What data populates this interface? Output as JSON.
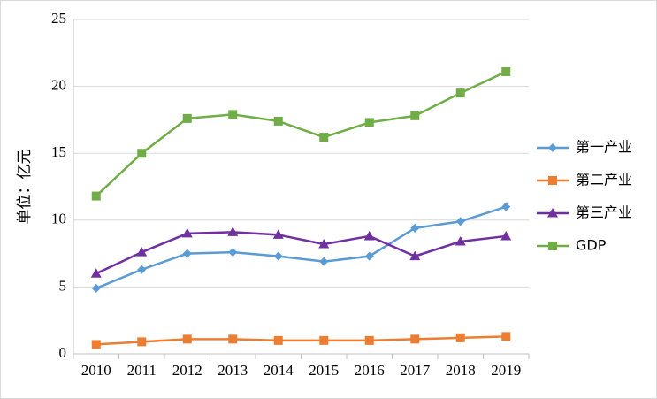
{
  "chart_data": {
    "type": "line",
    "title": "",
    "xlabel": "",
    "ylabel": "单位：亿元",
    "ylim": [
      0,
      25
    ],
    "yticks": [
      0,
      5,
      10,
      15,
      20,
      25
    ],
    "grid": "horizontal",
    "legend_position": "right",
    "categories": [
      "2010",
      "2011",
      "2012",
      "2013",
      "2014",
      "2015",
      "2016",
      "2017",
      "2018",
      "2019"
    ],
    "series": [
      {
        "name": "第一产业",
        "color": "#5b9bd5",
        "marker": "diamond",
        "values": [
          4.9,
          6.3,
          7.5,
          7.6,
          7.3,
          6.9,
          7.3,
          9.4,
          9.9,
          11.0
        ]
      },
      {
        "name": "第二产业",
        "color": "#ed7d31",
        "marker": "square",
        "values": [
          0.7,
          0.9,
          1.1,
          1.1,
          1.0,
          1.0,
          1.0,
          1.1,
          1.2,
          1.3
        ]
      },
      {
        "name": "第三产业",
        "color": "#7030a0",
        "marker": "triangle",
        "values": [
          6.0,
          7.6,
          9.0,
          9.1,
          8.9,
          8.2,
          8.8,
          7.3,
          8.4,
          8.8
        ]
      },
      {
        "name": "GDP",
        "color": "#70ad47",
        "marker": "square",
        "values": [
          11.8,
          15.0,
          17.6,
          17.9,
          17.4,
          16.2,
          17.3,
          17.8,
          19.5,
          21.1
        ]
      }
    ]
  }
}
